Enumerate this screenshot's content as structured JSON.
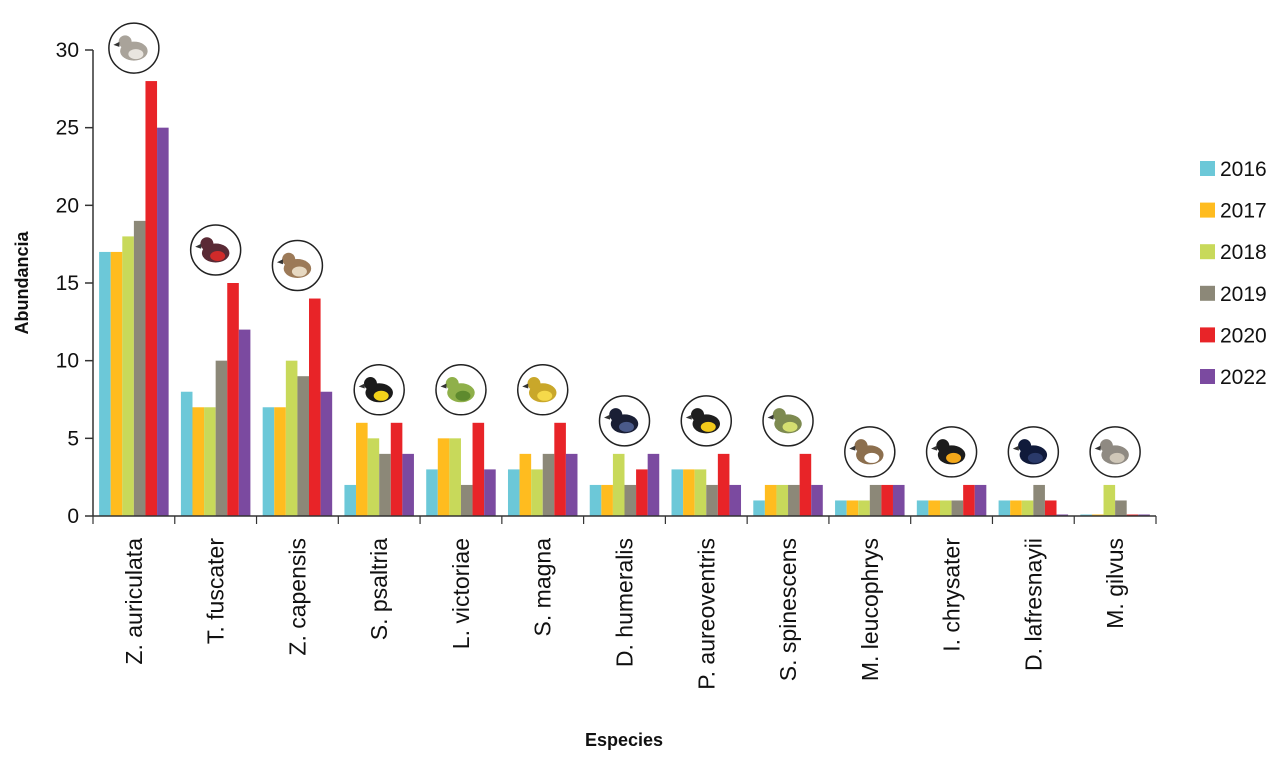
{
  "chart_data": {
    "type": "bar",
    "xlabel": "Especies",
    "ylabel": "Abundancia",
    "ylim": [
      0,
      30
    ],
    "yticks": [
      0,
      5,
      10,
      15,
      20,
      25,
      30
    ],
    "grid": false,
    "legend_position": "right",
    "categories": [
      "Z. auriculata",
      "T. fuscater",
      "Z. capensis",
      "S. psaltria",
      "L. victoriae",
      "S. magna",
      "D. humeralis",
      "P. aureoventris",
      "S. spinescens",
      "M. leucophrys",
      "I. chrysater",
      "D. lafresnayii",
      "M. gilvus"
    ],
    "series": [
      {
        "name": "2016",
        "color": "#6cc8d8",
        "values": [
          17,
          8,
          7,
          2,
          3,
          3,
          2,
          3,
          1,
          1,
          1,
          1,
          0
        ]
      },
      {
        "name": "2017",
        "color": "#ffbc1f",
        "values": [
          17,
          7,
          7,
          6,
          5,
          4,
          2,
          3,
          2,
          1,
          1,
          1,
          0
        ]
      },
      {
        "name": "2018",
        "color": "#c8d95a",
        "values": [
          18,
          7,
          10,
          5,
          5,
          3,
          4,
          3,
          2,
          1,
          1,
          1,
          2
        ]
      },
      {
        "name": "2019",
        "color": "#8c8878",
        "values": [
          19,
          10,
          9,
          4,
          2,
          4,
          2,
          2,
          2,
          2,
          1,
          2,
          1
        ]
      },
      {
        "name": "2020",
        "color": "#e82428",
        "values": [
          28,
          15,
          14,
          6,
          6,
          6,
          3,
          4,
          4,
          2,
          2,
          1,
          0
        ]
      },
      {
        "name": "2022",
        "color": "#7b4aa0",
        "values": [
          25,
          12,
          8,
          4,
          3,
          4,
          4,
          2,
          2,
          2,
          2,
          0,
          0
        ]
      }
    ],
    "bird_icons": [
      "dove-icon",
      "tanager-red-icon",
      "sparrow-icon",
      "goldfinch-icon",
      "hummingbird-icon",
      "meadowlark-icon",
      "blackbird-icon",
      "siskin-icon",
      "siskin-green-icon",
      "sparrow-white-icon",
      "oriole-icon",
      "tanager-black-icon",
      "mockingbird-icon"
    ]
  }
}
